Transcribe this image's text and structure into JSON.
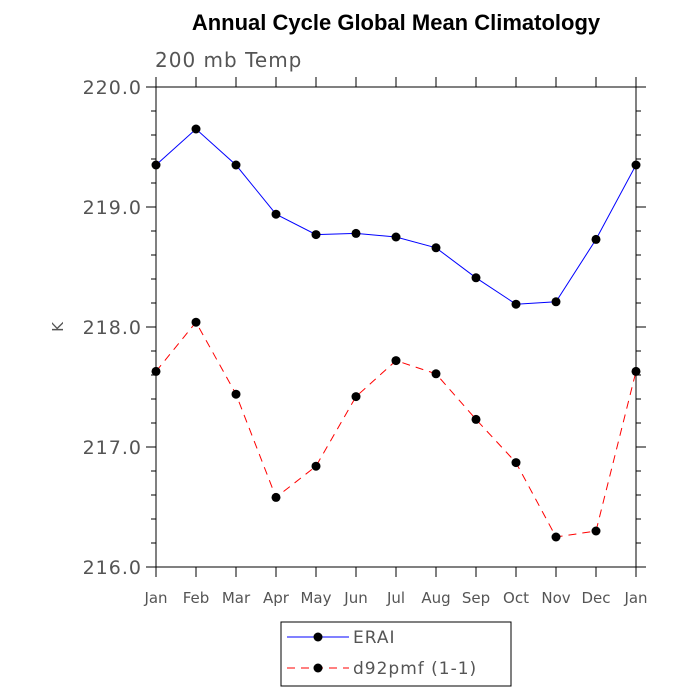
{
  "chart_data": {
    "type": "line",
    "title": "Annual Cycle Global Mean Climatology",
    "subtitle": "200 mb Temp",
    "ylabel": "K",
    "xlabel": "",
    "categories": [
      "Jan",
      "Feb",
      "Mar",
      "Apr",
      "May",
      "Jun",
      "Jul",
      "Aug",
      "Sep",
      "Oct",
      "Nov",
      "Dec",
      "Jan"
    ],
    "ylim": [
      216.0,
      220.0
    ],
    "yticks": [
      "216.0",
      "217.0",
      "218.0",
      "219.0",
      "220.0"
    ],
    "grid": false,
    "legend_position": "bottom-center",
    "series": [
      {
        "name": "ERAI",
        "color": "#0000ff",
        "line_style": "solid",
        "marker": "filled-circle",
        "values": [
          219.35,
          219.65,
          219.35,
          218.94,
          218.77,
          218.78,
          218.75,
          218.66,
          218.41,
          218.19,
          218.21,
          218.73,
          219.35
        ]
      },
      {
        "name": "d92pmf (1-1)",
        "color": "#ff0000",
        "line_style": "dashed",
        "marker": "filled-circle",
        "values": [
          217.63,
          218.04,
          217.44,
          216.58,
          216.84,
          217.42,
          217.72,
          217.61,
          217.23,
          216.87,
          216.25,
          216.3,
          217.63
        ]
      }
    ]
  }
}
